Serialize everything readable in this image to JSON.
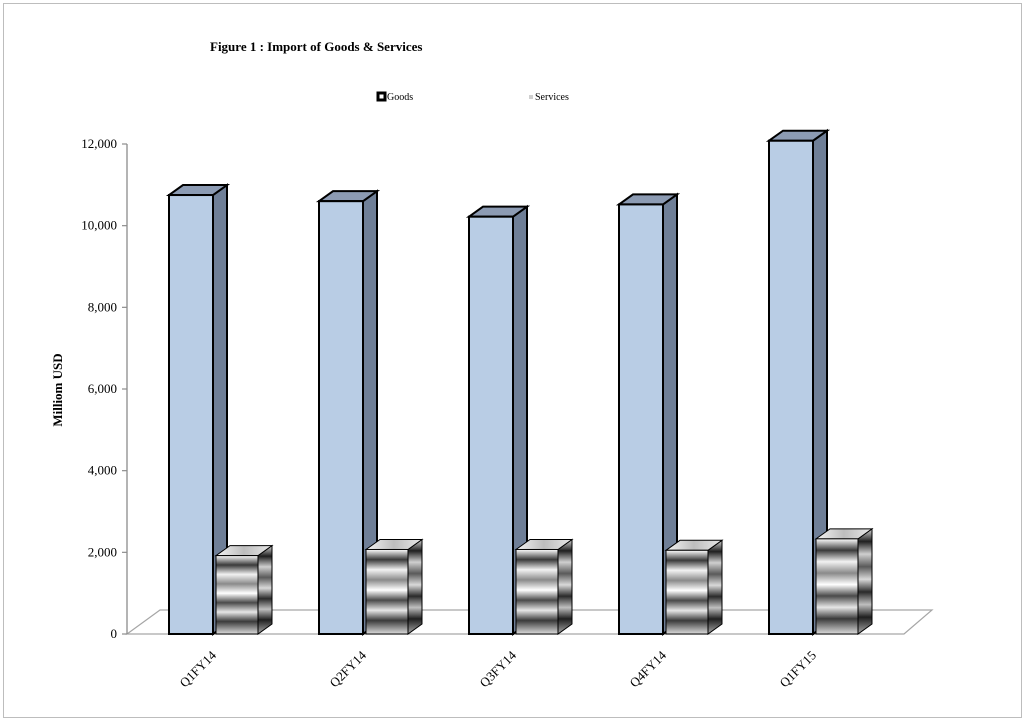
{
  "chart_data": {
    "type": "bar",
    "title": "Figure 1 : Import of Goods & Services",
    "ylabel": "Milliom USD",
    "xlabel": "",
    "categories": [
      "Q1FY14",
      "Q2FY14",
      "Q3FY14",
      "Q4FY14",
      "Q1FY15"
    ],
    "series": [
      {
        "name": "Goods",
        "values": [
          10750,
          10600,
          10220,
          10520,
          12080
        ]
      },
      {
        "name": "Services",
        "values": [
          1920,
          2070,
          2070,
          2050,
          2330
        ]
      }
    ],
    "ylim": [
      0,
      12000
    ],
    "yticks": [
      0,
      2000,
      4000,
      6000,
      8000,
      10000,
      12000
    ],
    "ytick_labels": [
      "0",
      "2,000",
      "4,000",
      "6,000",
      "8,000",
      "10,000",
      "12,000"
    ],
    "grid": false,
    "legend": "top-center",
    "colors": {
      "goods_front": "#b9cde5",
      "goods_side": "#6f7f97",
      "goods_top": "#8c9bb3",
      "services": "metallic-gray"
    }
  }
}
